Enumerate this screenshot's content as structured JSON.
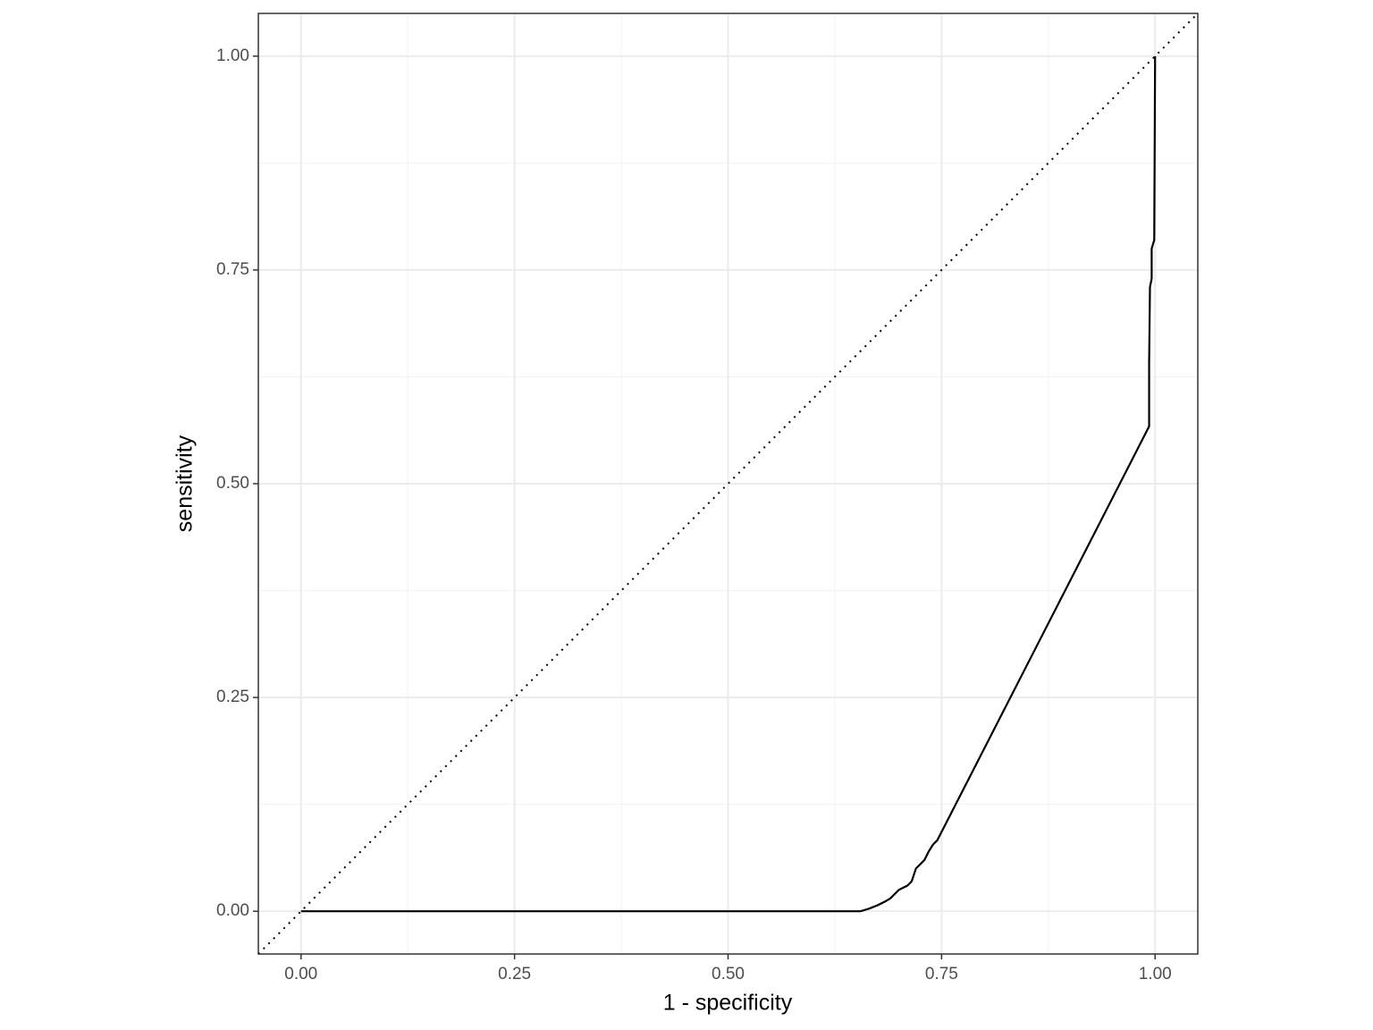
{
  "chart_data": {
    "type": "line",
    "xlabel": "1 - specificity",
    "ylabel": "sensitivity",
    "x": [
      0,
      0.53,
      0.655,
      0.665,
      0.675,
      0.685,
      0.69,
      0.7,
      0.71,
      0.715,
      0.72,
      0.73,
      0.735,
      0.74,
      0.745,
      0.993,
      0.993,
      0.994,
      0.996,
      0.996,
      0.999,
      1.0
    ],
    "series": [
      {
        "color": "#000000",
        "values": [
          0,
          0,
          0,
          0.003,
          0.007,
          0.012,
          0.015,
          0.025,
          0.03,
          0.035,
          0.05,
          0.06,
          0.07,
          0.078,
          0.083,
          0.567,
          0.64,
          0.73,
          0.74,
          0.775,
          0.785,
          1.0
        ]
      }
    ],
    "xlim": [
      -0.05,
      1.05
    ],
    "ylim": [
      -0.05,
      1.05
    ],
    "xticks": [
      {
        "value": 0,
        "label": "0.00"
      },
      {
        "value": 0.25,
        "label": "0.25"
      },
      {
        "value": 0.5,
        "label": "0.50"
      },
      {
        "value": 0.75,
        "label": "0.75"
      },
      {
        "value": 1,
        "label": "1.00"
      }
    ],
    "yticks": [
      {
        "value": 0,
        "label": "0.00"
      },
      {
        "value": 0.25,
        "label": "0.25"
      },
      {
        "value": 0.5,
        "label": "0.50"
      },
      {
        "value": 0.75,
        "label": "0.75"
      },
      {
        "value": 1,
        "label": "1.00"
      }
    ],
    "grid": true,
    "minor_grid": true,
    "diagonal": "dotted"
  }
}
